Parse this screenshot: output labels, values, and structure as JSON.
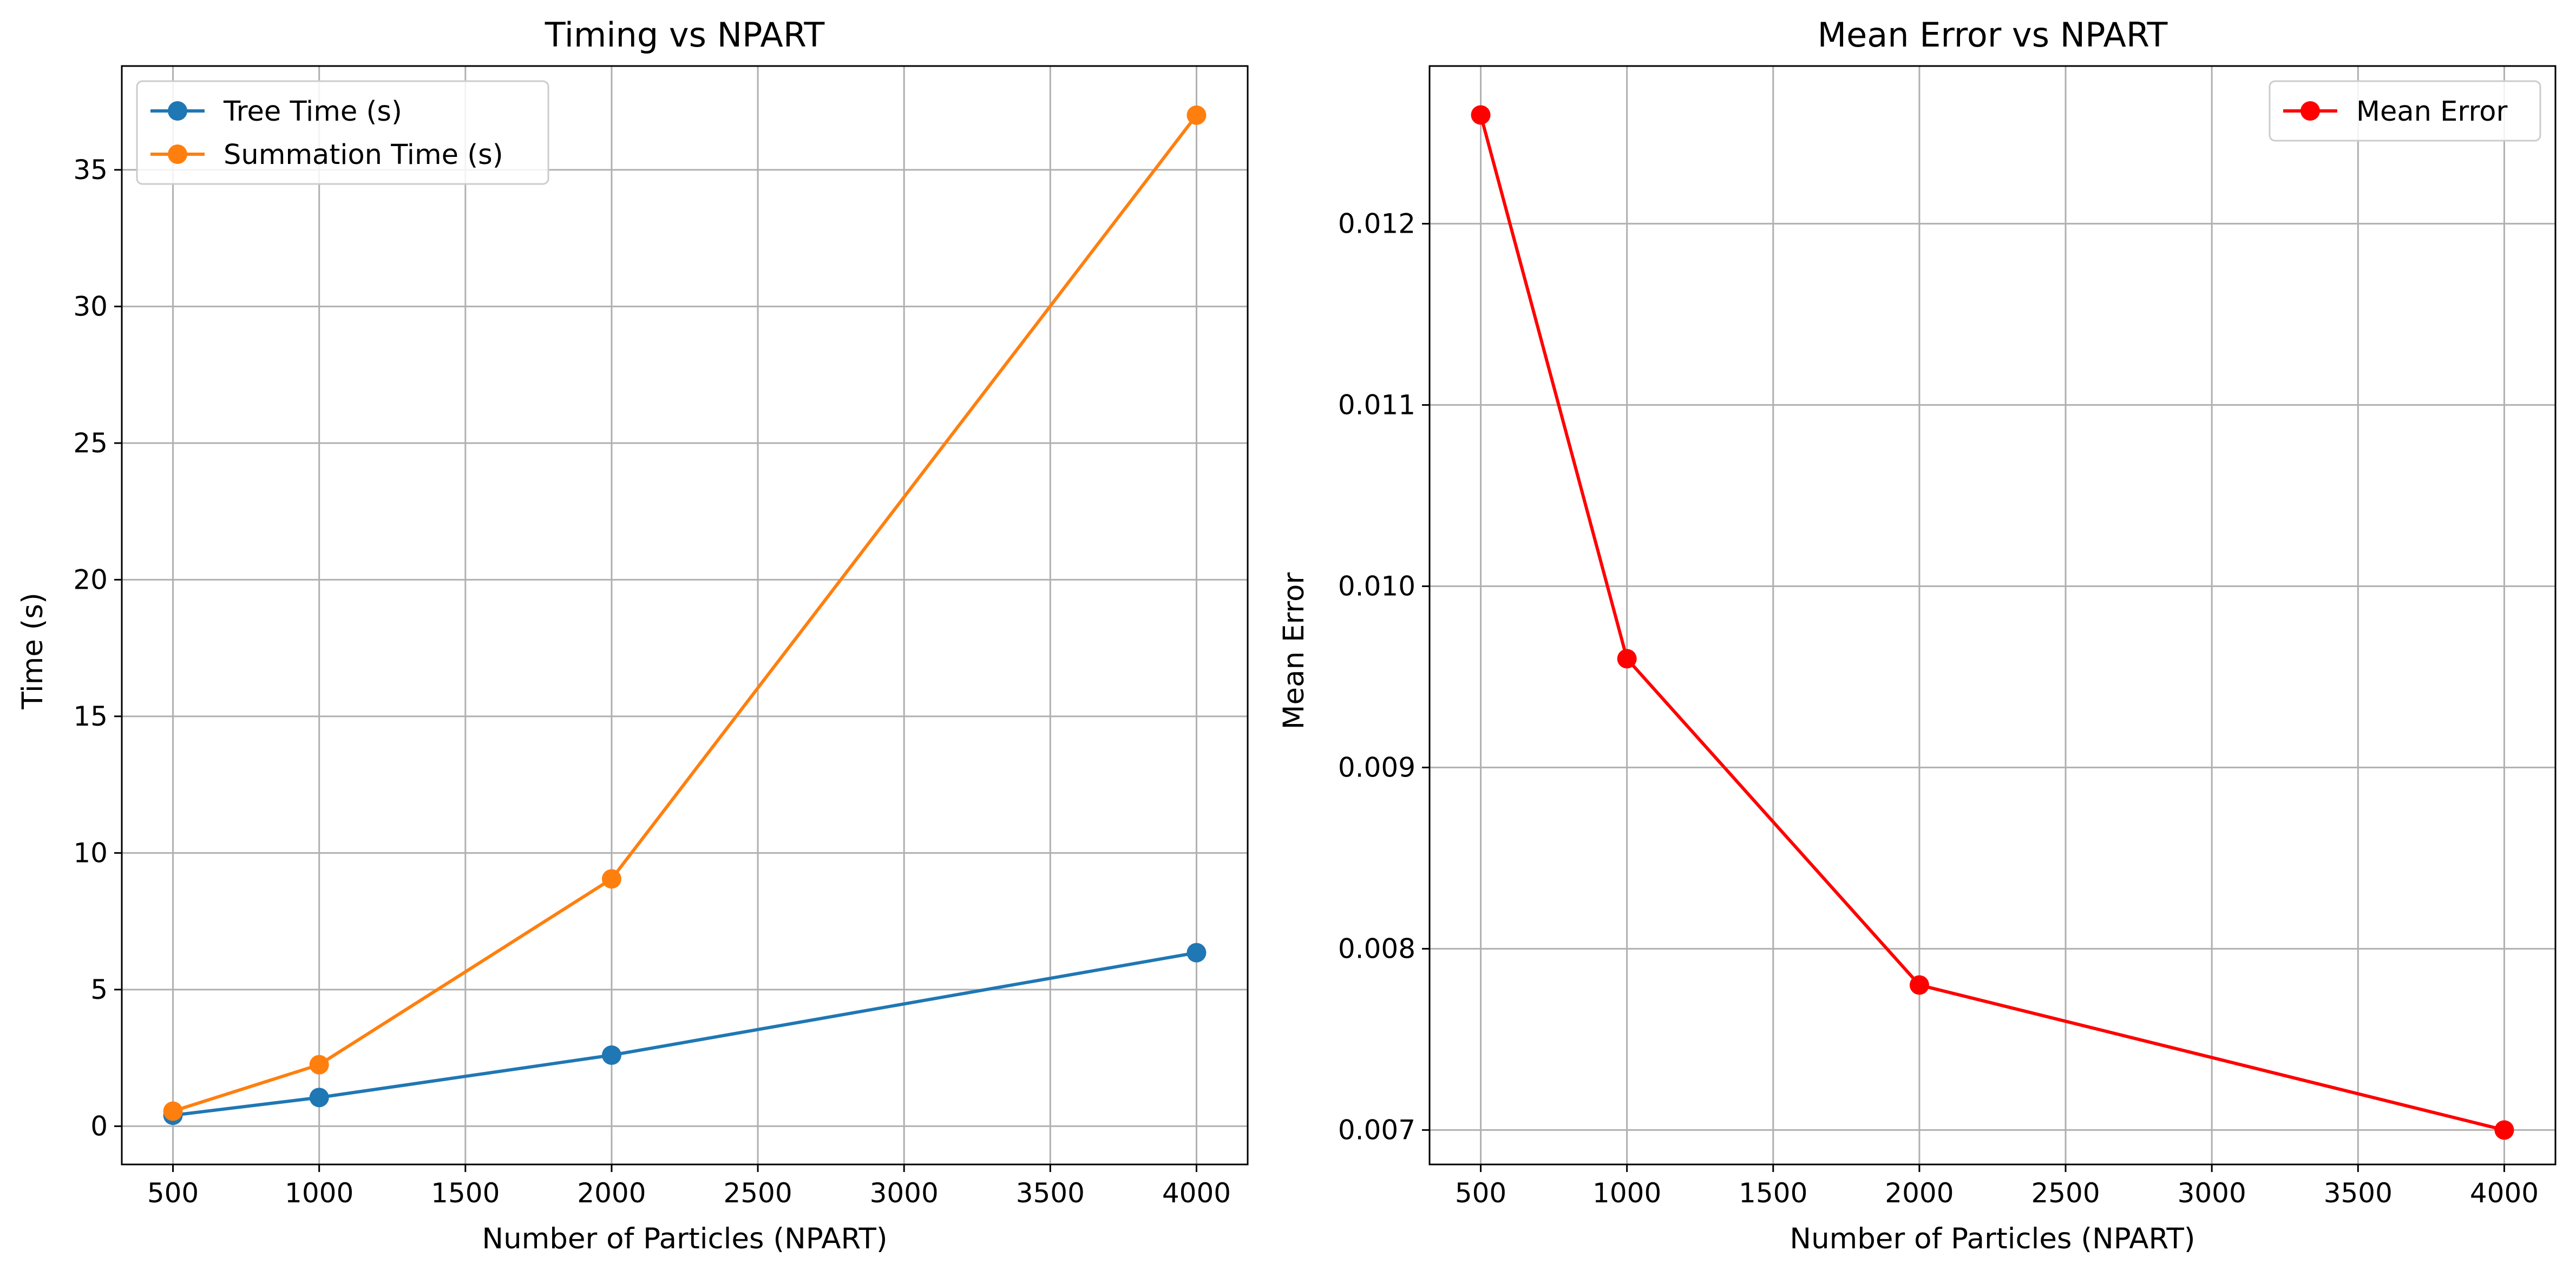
{
  "chart_data": [
    {
      "type": "line",
      "title": "Timing vs NPART",
      "xlabel": "Number of Particles (NPART)",
      "ylabel": "Time (s)",
      "x": [
        500,
        1000,
        2000,
        4000
      ],
      "series": [
        {
          "name": "Tree Time (s)",
          "color": "#1f77b4",
          "marker": "circle",
          "values": [
            0.4,
            1.05,
            2.6,
            6.35
          ]
        },
        {
          "name": "Summation Time (s)",
          "color": "#ff7f0e",
          "marker": "circle",
          "values": [
            0.55,
            2.25,
            9.05,
            37.0
          ]
        }
      ],
      "xlim": [
        325,
        4175
      ],
      "ylim": [
        -1.4,
        38.8
      ],
      "xticks": [
        500,
        1000,
        1500,
        2000,
        2500,
        3000,
        3500,
        4000
      ],
      "xtick_labels": [
        "500",
        "1000",
        "1500",
        "2000",
        "2500",
        "3000",
        "3500",
        "4000"
      ],
      "yticks": [
        0,
        5,
        10,
        15,
        20,
        25,
        30,
        35
      ],
      "ytick_labels": [
        "0",
        "5",
        "10",
        "15",
        "20",
        "25",
        "30",
        "35"
      ],
      "grid": true,
      "legend_position": "upper-left"
    },
    {
      "type": "line",
      "title": "Mean Error vs NPART",
      "xlabel": "Number of Particles (NPART)",
      "ylabel": "Mean Error",
      "x": [
        500,
        1000,
        2000,
        4000
      ],
      "series": [
        {
          "name": "Mean Error",
          "color": "#ff0000",
          "marker": "circle",
          "values": [
            0.0126,
            0.0096,
            0.0078,
            0.007
          ]
        }
      ],
      "xlim": [
        325,
        4175
      ],
      "ylim": [
        0.00681,
        0.01287
      ],
      "xticks": [
        500,
        1000,
        1500,
        2000,
        2500,
        3000,
        3500,
        4000
      ],
      "xtick_labels": [
        "500",
        "1000",
        "1500",
        "2000",
        "2500",
        "3000",
        "3500",
        "4000"
      ],
      "yticks": [
        0.007,
        0.008,
        0.009,
        0.01,
        0.011,
        0.012
      ],
      "ytick_labels": [
        "0.007",
        "0.008",
        "0.009",
        "0.010",
        "0.011",
        "0.012"
      ],
      "grid": true,
      "legend_position": "upper-right"
    }
  ]
}
